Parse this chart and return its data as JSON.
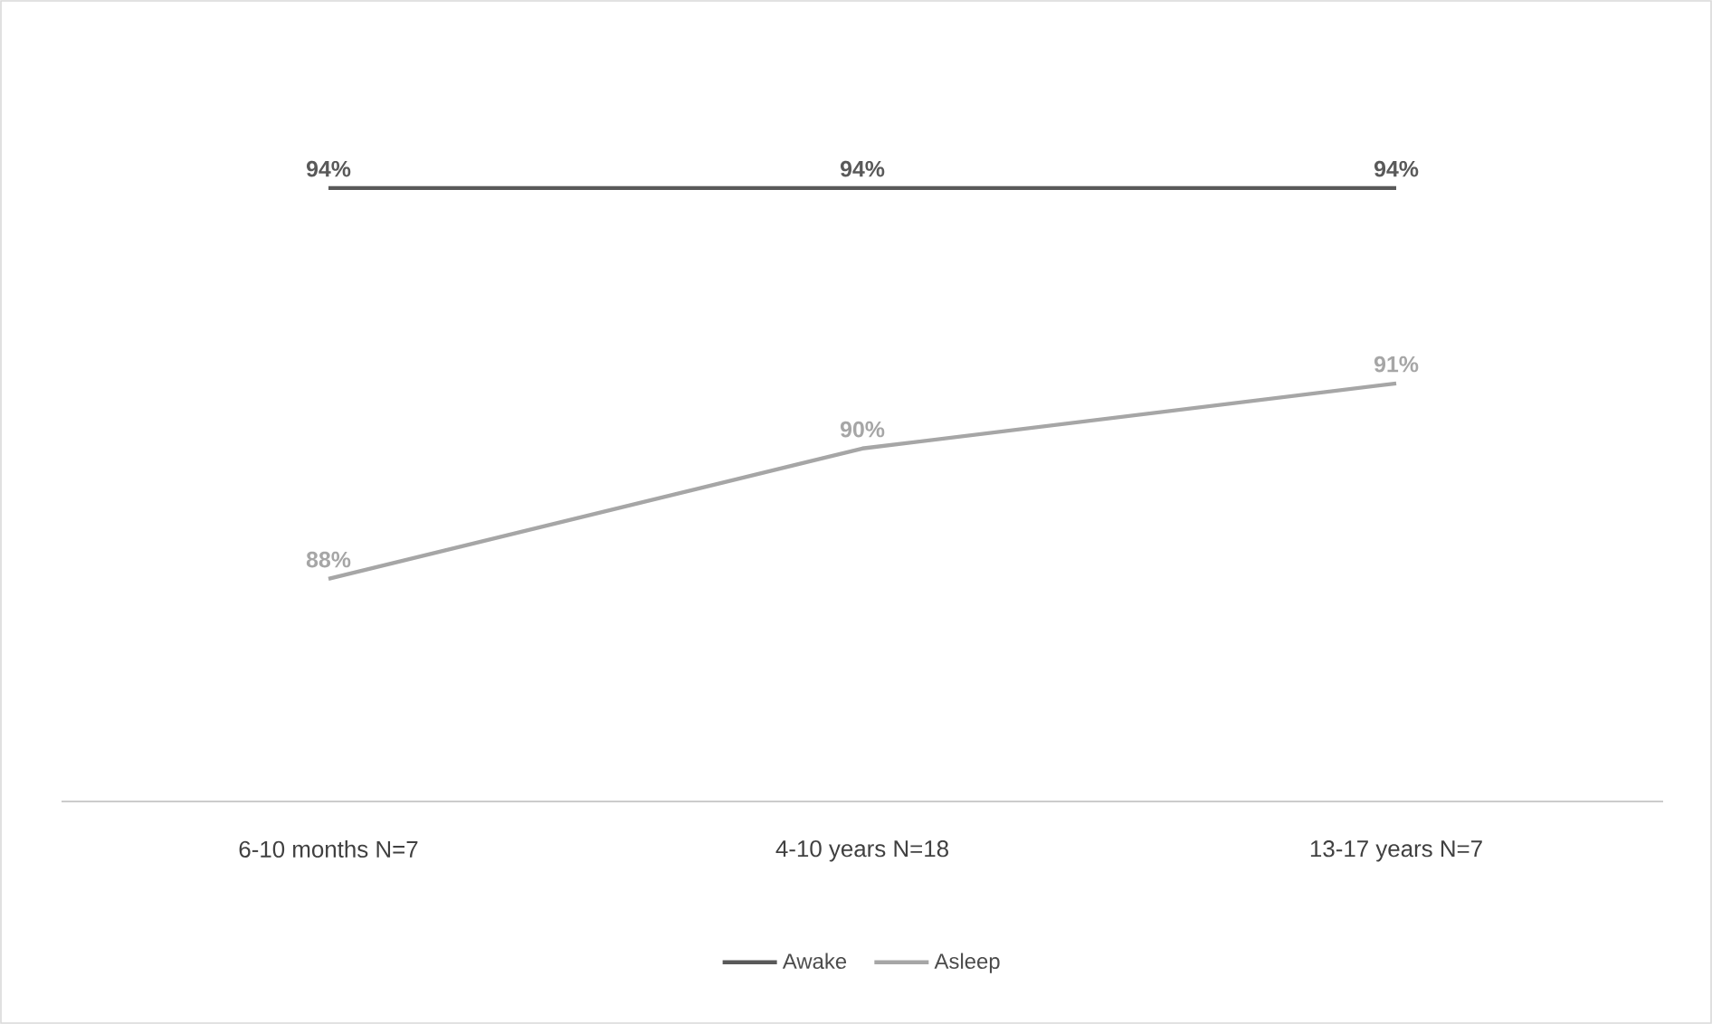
{
  "chart_data": {
    "type": "line",
    "categories": [
      "6-10 months N=7",
      "4-10 years N=18",
      "13-17 years N=7"
    ],
    "series": [
      {
        "name": "Awake",
        "color": "#595959",
        "values": [
          94,
          94,
          94
        ],
        "value_labels": [
          "94%",
          "94%",
          "94%"
        ]
      },
      {
        "name": "Asleep",
        "color": "#a6a6a6",
        "values": [
          88,
          90,
          91
        ],
        "value_labels": [
          "88%",
          "90%",
          "91%"
        ]
      }
    ],
    "tick_labels": "x",
    "legend": "bottom",
    "line_style": "solid"
  }
}
